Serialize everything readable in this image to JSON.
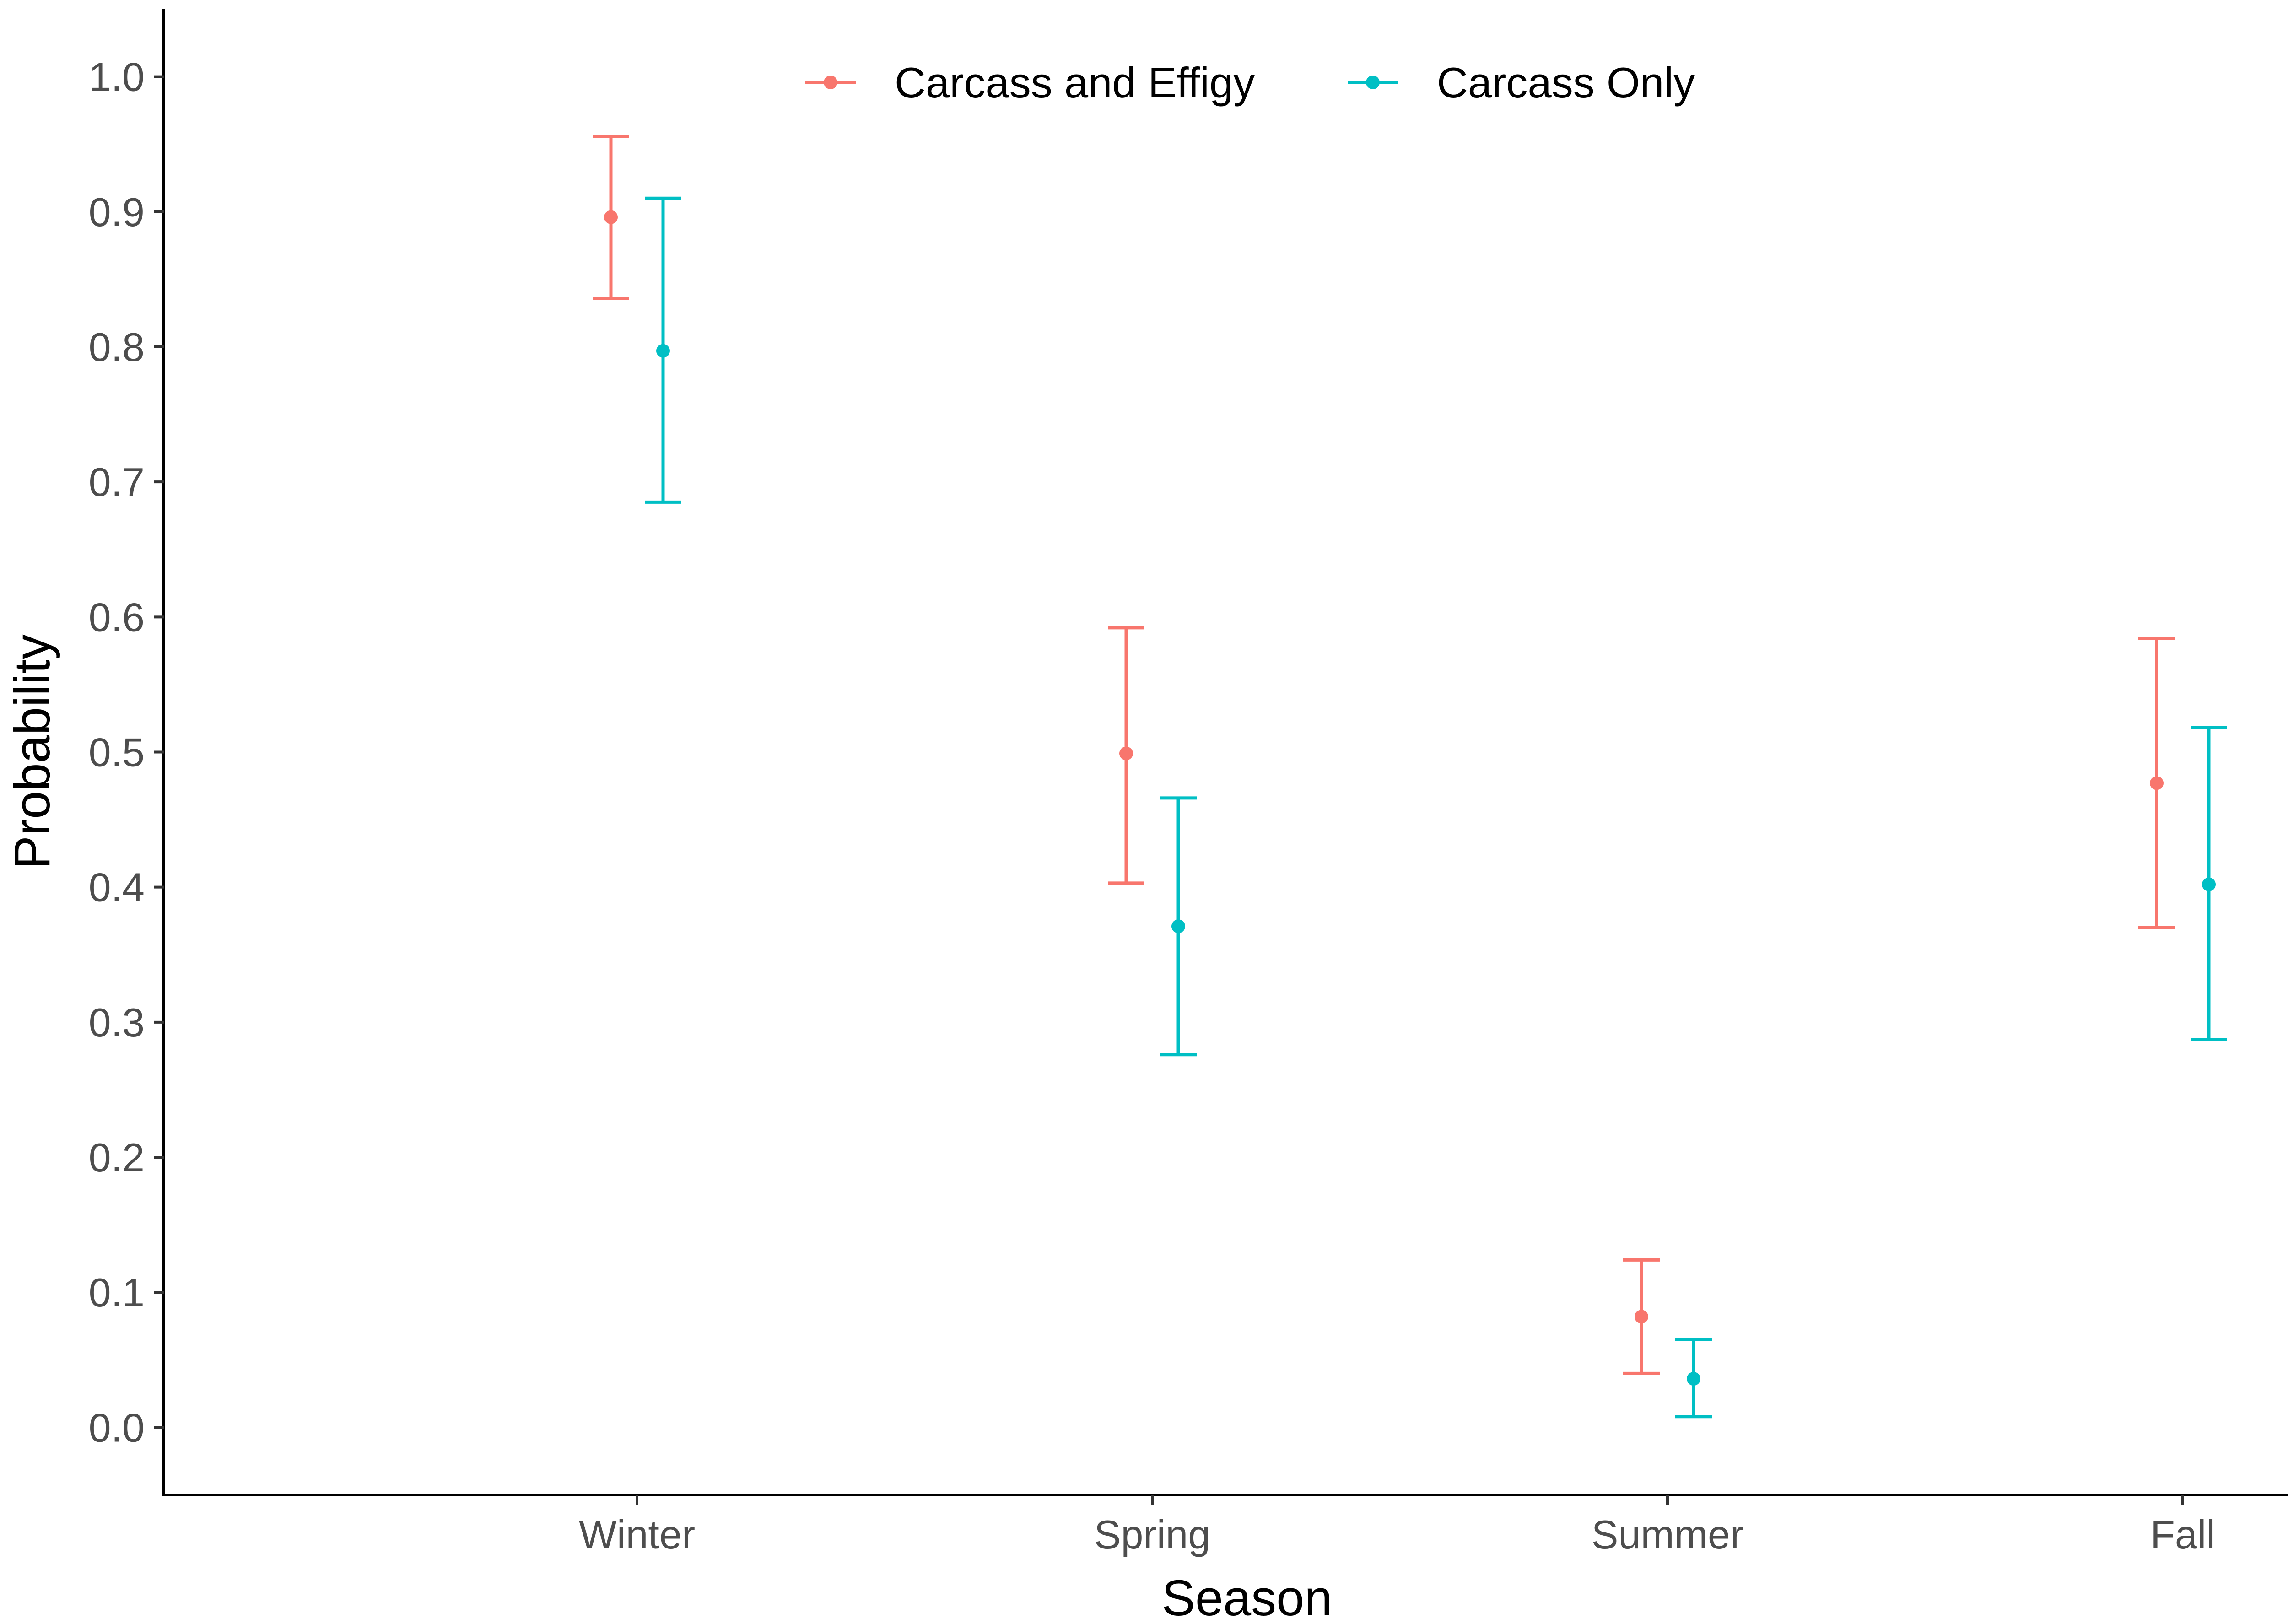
{
  "chart_data": {
    "type": "scatter",
    "subtype": "point-with-errorbars",
    "title": "",
    "xlabel": "Season",
    "ylabel": "Probability",
    "categories": [
      "Winter",
      "Spring",
      "Summer",
      "Fall"
    ],
    "ylim": [
      -0.05,
      1.05
    ],
    "yticks": [
      "0.0",
      "0.1",
      "0.2",
      "0.3",
      "0.4",
      "0.5",
      "0.6",
      "0.7",
      "0.8",
      "0.9",
      "1.0"
    ],
    "grid": false,
    "legend": {
      "position": "top-center",
      "orientation": "horizontal"
    },
    "series": [
      {
        "name": "Carcass and Effigy",
        "color": "#F8766D",
        "values": [
          0.896,
          0.499,
          0.082,
          0.477
        ],
        "lower": [
          0.836,
          0.403,
          0.04,
          0.37
        ],
        "upper": [
          0.956,
          0.592,
          0.124,
          0.584
        ]
      },
      {
        "name": "Carcass Only",
        "color": "#00BFC4",
        "values": [
          0.797,
          0.371,
          0.036,
          0.402
        ],
        "lower": [
          0.685,
          0.276,
          0.008,
          0.287
        ],
        "upper": [
          0.91,
          0.466,
          0.065,
          0.518
        ]
      }
    ]
  }
}
